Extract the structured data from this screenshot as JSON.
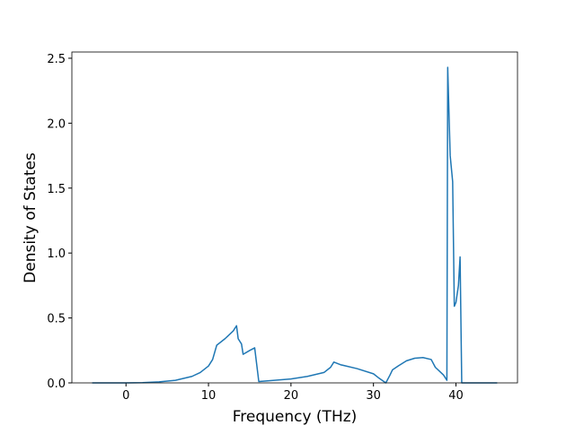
{
  "chart_data": {
    "type": "line",
    "x_label": "Frequency (THz)",
    "y_label": "Density of States",
    "x": [
      -4.1,
      0,
      2,
      4,
      6,
      8,
      9,
      10,
      10.5,
      11,
      12,
      13,
      13.4,
      13.6,
      14,
      14.2,
      15,
      15.6,
      16.1,
      18,
      20,
      22,
      24,
      24.8,
      25.2,
      26,
      28,
      30,
      30.6,
      31.5,
      32,
      32.3,
      33,
      34,
      35,
      36,
      37,
      37.5,
      38,
      38.5,
      38.9,
      39,
      39.3,
      39.6,
      39.8,
      40,
      40.3,
      40.5,
      40.7,
      45
    ],
    "series": [
      {
        "name": "DOS",
        "color": "#1f77b4",
        "values": [
          0,
          0,
          0.002,
          0.008,
          0.02,
          0.05,
          0.08,
          0.13,
          0.18,
          0.29,
          0.34,
          0.4,
          0.44,
          0.34,
          0.3,
          0.22,
          0.25,
          0.27,
          0.01,
          0.02,
          0.03,
          0.05,
          0.08,
          0.12,
          0.16,
          0.14,
          0.11,
          0.07,
          0.04,
          0,
          0.06,
          0.1,
          0.13,
          0.17,
          0.19,
          0.195,
          0.18,
          0.12,
          0.09,
          0.06,
          0.02,
          2.43,
          1.75,
          1.55,
          0.59,
          0.62,
          0.75,
          0.97,
          0,
          0
        ]
      }
    ],
    "xlim": [
      -6.56,
      47.46
    ],
    "ylim": [
      0,
      2.548
    ],
    "xticks": [
      0,
      10,
      20,
      30,
      40
    ],
    "yticks": [
      {
        "value": 0,
        "label": "0.0"
      },
      {
        "value": 0.5,
        "label": "0.5"
      },
      {
        "value": 1,
        "label": "1.0"
      },
      {
        "value": 1.5,
        "label": "1.5"
      },
      {
        "value": 2,
        "label": "2.0"
      },
      {
        "value": 2.5,
        "label": "2.5"
      }
    ]
  }
}
